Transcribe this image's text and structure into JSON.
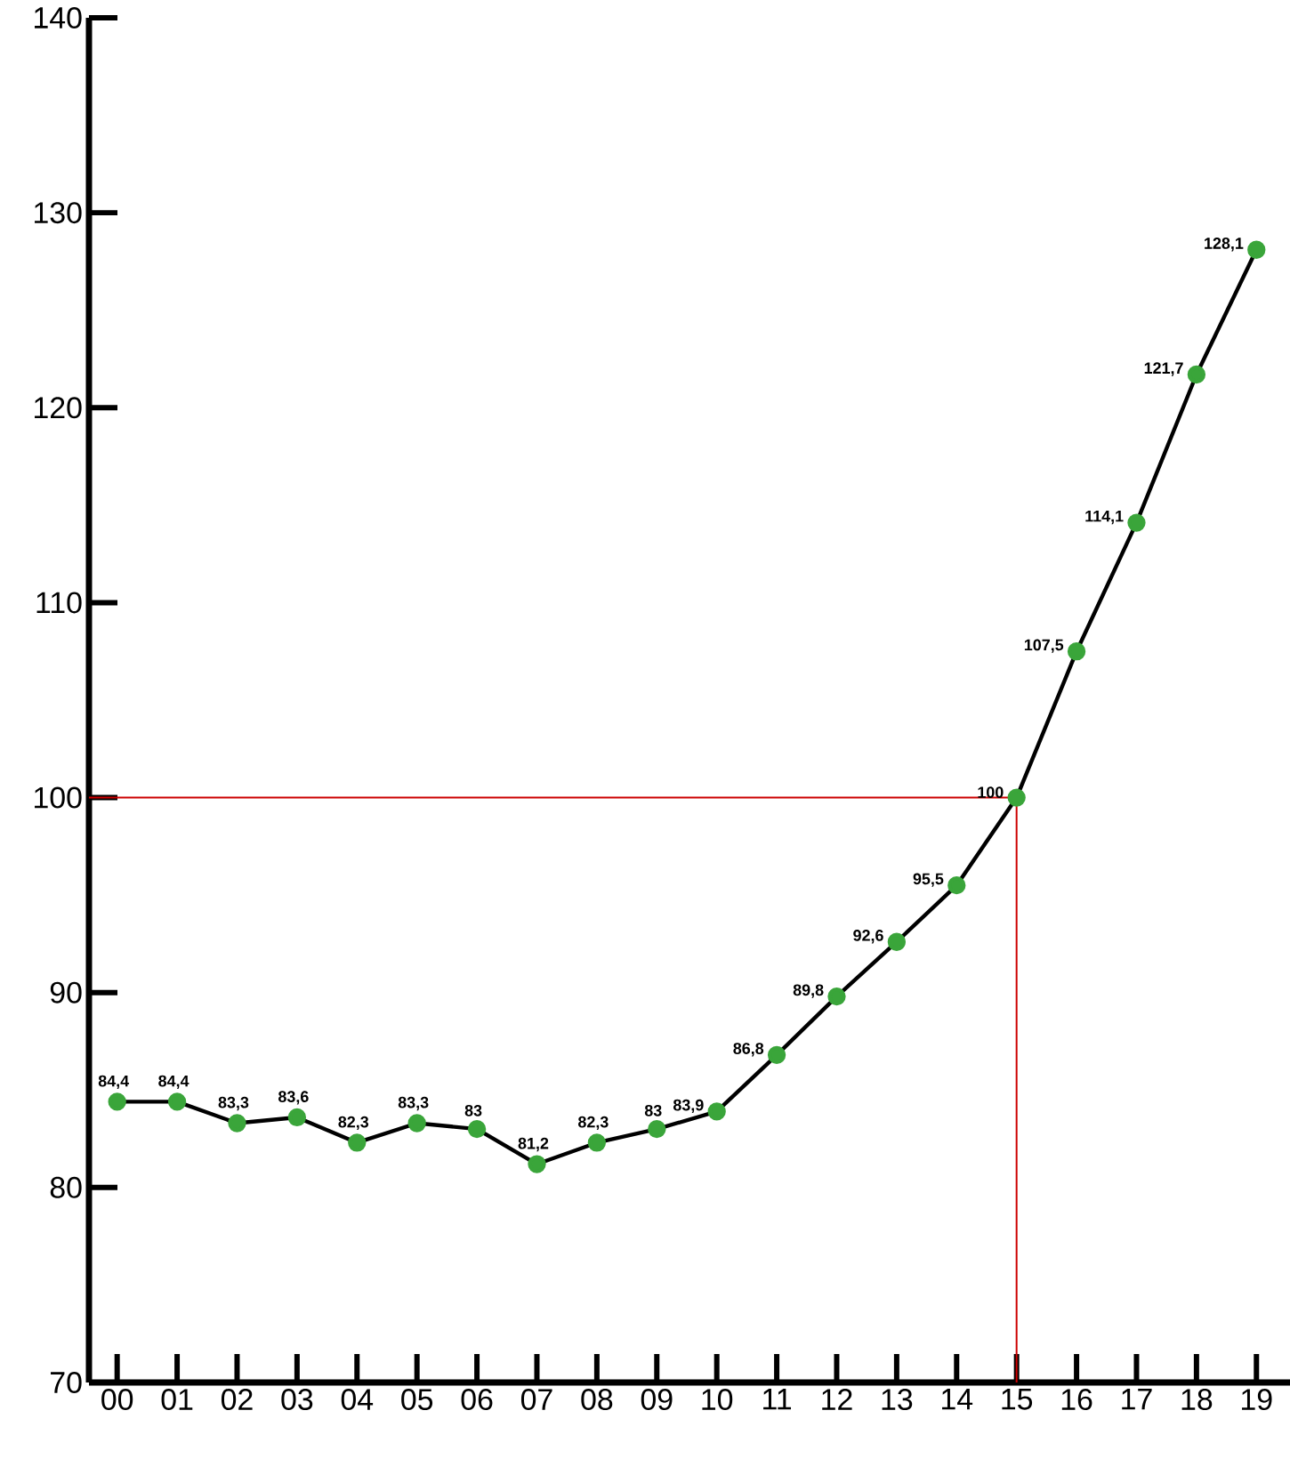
{
  "chart_data": {
    "type": "line",
    "categories": [
      "00",
      "01",
      "02",
      "03",
      "04",
      "05",
      "06",
      "07",
      "08",
      "09",
      "10",
      "11",
      "12",
      "13",
      "14",
      "15",
      "16",
      "17",
      "18",
      "19"
    ],
    "values": [
      84.4,
      84.4,
      83.3,
      83.6,
      82.3,
      83.3,
      83,
      81.2,
      82.3,
      83,
      83.9,
      86.8,
      89.8,
      92.6,
      95.5,
      100,
      107.5,
      114.1,
      121.7,
      128.1
    ],
    "value_labels": [
      "84,4",
      "84,4",
      "83,3",
      "83,6",
      "82,3",
      "83,3",
      "83",
      "81,2",
      "82,3",
      "83",
      "83,9",
      "86,8",
      "89,8",
      "92,6",
      "95,5",
      "100",
      "107,5",
      "114,1",
      "121,7",
      "128,1"
    ],
    "color": "#3aa53a",
    "marker": "circle",
    "ylim": [
      70,
      140
    ],
    "yticks": [
      70,
      80,
      90,
      100,
      110,
      120,
      130,
      140
    ],
    "grid": false,
    "ref_lines": [
      {
        "axis": "y",
        "value": 100,
        "color": "#cc0000"
      },
      {
        "axis": "x",
        "value": "15",
        "color": "#cc0000"
      }
    ]
  }
}
